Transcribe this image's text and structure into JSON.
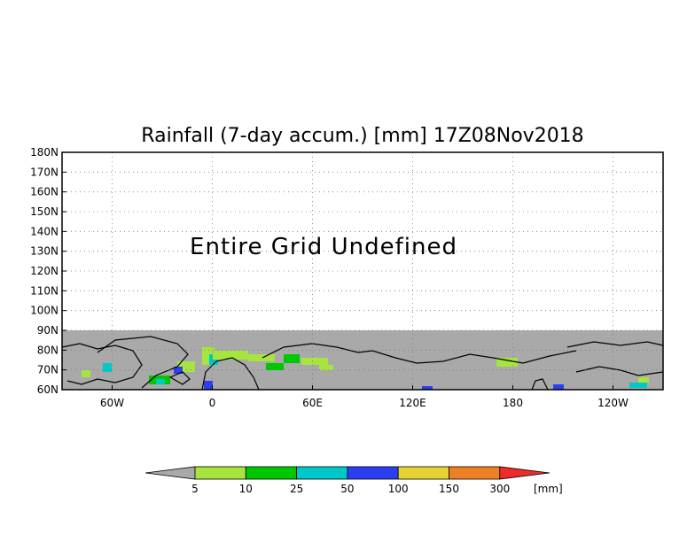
{
  "title": "Rainfall (7-day accum.) [mm] 17Z08Nov2018",
  "message": "Entire Grid Undefined",
  "map": {
    "lat_range": [
      60,
      180
    ],
    "lon_range": [
      -90,
      270
    ],
    "data_band_lat": [
      60,
      90
    ],
    "y_ticks": [
      "60N",
      "70N",
      "80N",
      "90N",
      "100N",
      "110N",
      "120N",
      "130N",
      "140N",
      "150N",
      "160N",
      "170N",
      "180N"
    ],
    "x_ticks": [
      "60W",
      "0",
      "60E",
      "120E",
      "180",
      "120W"
    ],
    "x_tick_lon": [
      -60,
      0,
      60,
      120,
      180,
      240
    ],
    "background_color": "#a9a9a9",
    "grid": true
  },
  "colorbar": {
    "labels": [
      "5",
      "10",
      "25",
      "50",
      "100",
      "150",
      "300"
    ],
    "unit": "[mm]",
    "colors": [
      "#a9a9a9",
      "#a6e43e",
      "#00c800",
      "#00c8c8",
      "#2b3ef0",
      "#e6d233",
      "#ee7f24",
      "#ee2a2a"
    ]
  }
}
